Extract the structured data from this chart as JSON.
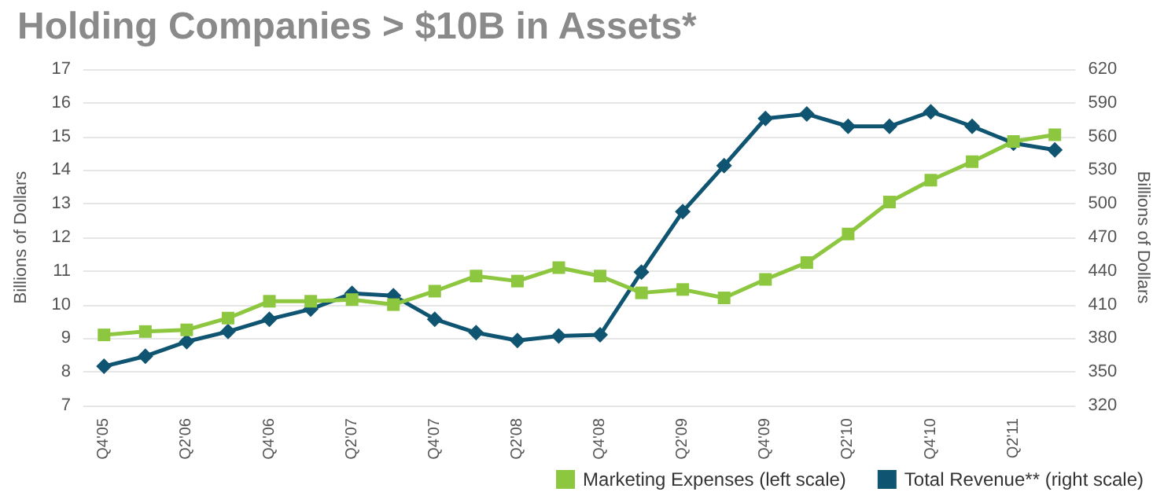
{
  "chart_data": {
    "type": "line",
    "title": "Holding Companies > $10B in Assets*",
    "categories": [
      "Q4'05",
      null,
      "Q2'06",
      null,
      "Q4'06",
      null,
      "Q2'07",
      null,
      "Q4'07",
      null,
      "Q2'08",
      null,
      "Q4'08",
      null,
      "Q2'09",
      null,
      "Q4'09",
      null,
      "Q2'10",
      null,
      "Q4'10",
      null,
      "Q2'11",
      null
    ],
    "series": [
      {
        "name": "Marketing Expenses (left scale)",
        "color": "#8dc63f",
        "marker": "square",
        "values": [
          9.1,
          9.2,
          9.25,
          9.6,
          10.1,
          10.1,
          10.15,
          10.0,
          10.4,
          10.85,
          10.7,
          11.1,
          10.85,
          10.35,
          10.45,
          10.2,
          10.75,
          11.25,
          12.1,
          13.05,
          13.7,
          14.25,
          14.85,
          15.05
        ]
      },
      {
        "name": "Total Revenue** (right scale)",
        "color": "#0f5470",
        "marker": "diamond",
        "axis": "y2",
        "values": [
          355,
          364,
          377,
          386,
          397,
          406,
          420,
          418,
          397,
          385,
          378,
          382,
          383,
          439,
          493,
          534,
          576,
          580,
          569,
          569,
          582,
          569,
          554,
          548
        ]
      }
    ],
    "ylabel": "Billions of Dollars",
    "y2label": "Billions of Dollars",
    "ylim": [
      7,
      17
    ],
    "yticks": [
      7,
      8,
      9,
      10,
      11,
      12,
      13,
      14,
      15,
      16,
      17
    ],
    "y2lim": [
      320,
      620
    ],
    "y2ticks": [
      320,
      350,
      380,
      410,
      440,
      470,
      500,
      530,
      560,
      590,
      620
    ],
    "grid": "y",
    "legend": "bottom right",
    "line_style": "solid"
  }
}
